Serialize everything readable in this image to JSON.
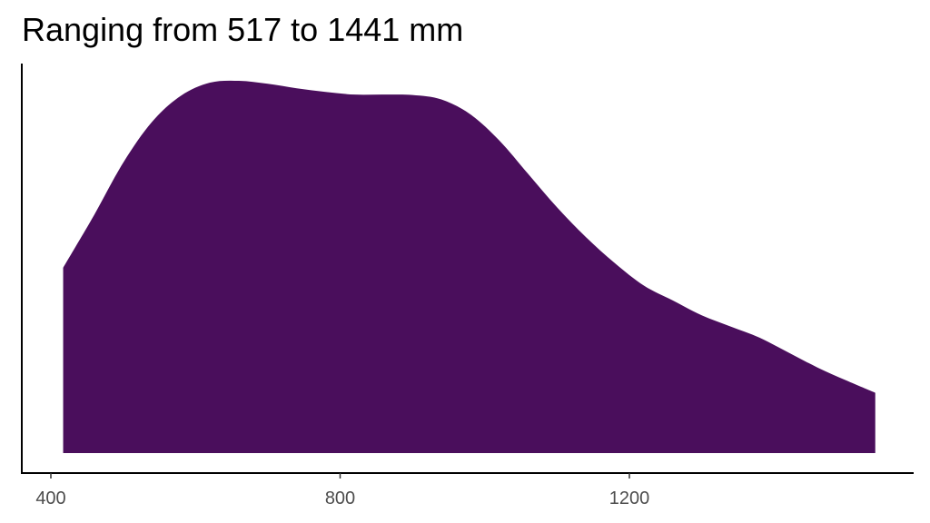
{
  "chart_data": {
    "type": "area",
    "title": "Ranging from 517 to 1441 mm",
    "xlabel": "",
    "ylabel": "",
    "xlim": [
      400,
      1800
    ],
    "ylim": [
      0,
      1.0
    ],
    "x_ticks": [
      400,
      800,
      1200
    ],
    "x_tick_labels": [
      "400",
      "800",
      "1200"
    ],
    "y_ticks": [],
    "grid": false,
    "legend": "none",
    "fill_color": "#4A0E5C",
    "axis_color": "#000000",
    "series": [
      {
        "x": [
          417,
          460,
          500,
          540,
          580,
          620,
          660,
          700,
          740,
          780,
          820,
          860,
          900,
          940,
          980,
          1020,
          1060,
          1100,
          1140,
          1180,
          1220,
          1260,
          1300,
          1340,
          1380,
          1420,
          1460,
          1500,
          1540
        ],
        "y": [
          0.498,
          0.64,
          0.78,
          0.89,
          0.96,
          0.995,
          1.0,
          0.992,
          0.98,
          0.97,
          0.963,
          0.963,
          0.962,
          0.95,
          0.91,
          0.84,
          0.75,
          0.66,
          0.58,
          0.51,
          0.45,
          0.41,
          0.37,
          0.34,
          0.31,
          0.27,
          0.23,
          0.195,
          0.162
        ]
      }
    ]
  }
}
